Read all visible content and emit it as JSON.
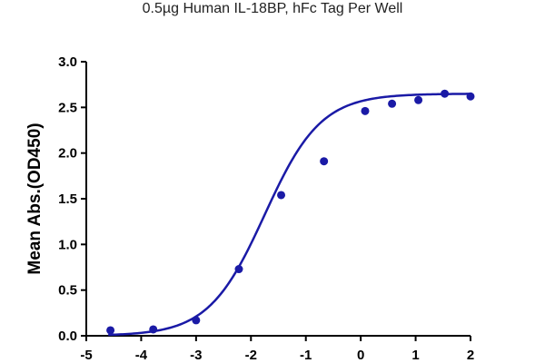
{
  "chart_data": {
    "type": "scatter",
    "title": "0.5µg Human IL-18BP,  hFc Tag Per Well",
    "xlabel": "",
    "ylabel": "Mean Abs.(OD450)",
    "xlim": [
      -5,
      2
    ],
    "ylim": [
      0,
      3.0
    ],
    "x_ticks": [
      "-5",
      "-4",
      "-3",
      "-2",
      "-1",
      "0",
      "1",
      "2"
    ],
    "y_ticks": [
      "0.0",
      "0.5",
      "1.0",
      "1.5",
      "2.0",
      "2.5",
      "3.0"
    ],
    "grid": false,
    "legend": "none",
    "color": "#1a1aa6",
    "series": [
      {
        "points": [
          {
            "x": -4.56,
            "y": 0.06
          },
          {
            "x": -3.78,
            "y": 0.07
          },
          {
            "x": -3.0,
            "y": 0.17
          },
          {
            "x": -2.22,
            "y": 0.73
          },
          {
            "x": -1.45,
            "y": 1.54
          },
          {
            "x": -0.67,
            "y": 1.91
          },
          {
            "x": 0.08,
            "y": 2.46
          },
          {
            "x": 0.57,
            "y": 2.54
          },
          {
            "x": 1.05,
            "y": 2.58
          },
          {
            "x": 1.53,
            "y": 2.65
          },
          {
            "x": 2.0,
            "y": 2.62
          }
        ],
        "fit": {
          "model": "4PL",
          "bottom": 0.0,
          "top": 2.65,
          "logEC50": -1.75,
          "hill": 0.85
        }
      }
    ]
  }
}
